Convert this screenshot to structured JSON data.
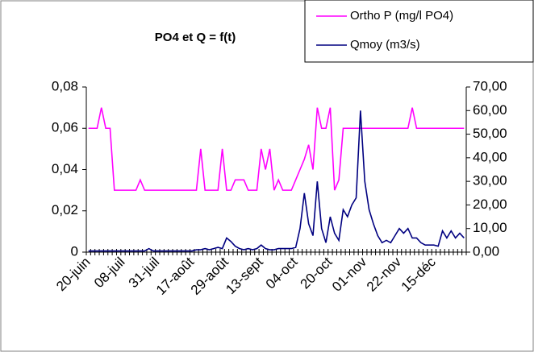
{
  "chart_data": {
    "type": "line",
    "title": "PO4 et Q = f(t)",
    "categories": [
      "20-juin",
      null,
      null,
      null,
      null,
      null,
      null,
      null,
      "08-juil",
      null,
      null,
      null,
      null,
      null,
      null,
      null,
      "31-juil",
      null,
      null,
      null,
      null,
      null,
      null,
      null,
      "17-août",
      null,
      null,
      null,
      null,
      null,
      null,
      null,
      "29-août",
      null,
      null,
      null,
      null,
      null,
      null,
      null,
      "13-sept",
      null,
      null,
      null,
      null,
      null,
      null,
      null,
      "04-oct",
      null,
      null,
      null,
      null,
      null,
      null,
      null,
      "20-oct",
      null,
      null,
      null,
      null,
      null,
      null,
      null,
      "01-nov",
      null,
      null,
      null,
      null,
      null,
      null,
      null,
      "22-nov",
      null,
      null,
      null,
      null,
      null,
      null,
      null,
      "15-déc",
      null,
      null,
      null,
      null,
      null,
      null,
      null
    ],
    "series": [
      {
        "name": "Ortho P (mg/l PO4)",
        "color": "#ff00ff",
        "axis": "y",
        "values": [
          0.06,
          0.06,
          0.06,
          0.07,
          0.06,
          0.06,
          0.03,
          0.03,
          0.03,
          0.03,
          0.03,
          0.03,
          0.035,
          0.03,
          0.03,
          0.03,
          0.03,
          0.03,
          0.03,
          0.03,
          0.03,
          0.03,
          0.03,
          0.03,
          0.03,
          0.03,
          0.05,
          0.03,
          0.03,
          0.03,
          0.03,
          0.05,
          0.03,
          0.03,
          0.035,
          0.035,
          0.035,
          0.03,
          0.03,
          0.03,
          0.05,
          0.04,
          0.05,
          0.03,
          0.035,
          0.03,
          0.03,
          0.03,
          0.035,
          0.04,
          0.045,
          0.052,
          0.04,
          0.07,
          0.06,
          0.06,
          0.07,
          0.03,
          0.035,
          0.06,
          0.06,
          0.06,
          0.06,
          0.06,
          0.06,
          0.06,
          0.06,
          0.06,
          0.06,
          0.06,
          0.06,
          0.06,
          0.06,
          0.06,
          0.06,
          0.07,
          0.06,
          0.06,
          0.06,
          0.06,
          0.06,
          0.06,
          0.06,
          0.06,
          0.06,
          0.06,
          0.06,
          0.06
        ]
      },
      {
        "name": "Qmoy (m3/s)",
        "color": "#000080",
        "axis": "y2",
        "values": [
          0.5,
          0.5,
          0.5,
          0.5,
          0.5,
          0.5,
          0.5,
          0.5,
          0.5,
          0.5,
          0.5,
          0.5,
          0.5,
          0.5,
          1.5,
          0.5,
          0.5,
          0.5,
          0.5,
          0.5,
          0.5,
          0.5,
          0.5,
          0.5,
          0.5,
          1,
          1,
          1.5,
          1,
          1.5,
          2,
          1.5,
          6,
          4.5,
          2.5,
          1.5,
          1,
          1.5,
          1,
          1.5,
          3,
          1.5,
          1,
          1,
          1.5,
          1.5,
          1.5,
          1.5,
          2,
          10,
          25,
          12,
          7,
          30,
          10,
          4,
          15,
          8,
          5,
          18,
          15,
          20,
          23,
          60,
          30,
          18,
          12,
          7,
          4,
          5,
          4,
          7,
          10,
          8,
          10,
          6,
          6,
          4,
          3,
          3,
          3,
          2.5,
          9,
          6,
          9,
          6,
          8,
          6
        ]
      }
    ],
    "ylim": [
      0,
      0.08
    ],
    "yticks": [
      0,
      {
        "value": 0.02,
        "label": "0,02"
      },
      {
        "value": 0.04,
        "label": "0,04"
      },
      {
        "value": 0.06,
        "label": "0,06"
      },
      {
        "value": 0.08,
        "label": "0,08"
      }
    ],
    "y2lim": [
      0,
      70
    ],
    "y2ticks": [
      {
        "value": 0,
        "label": "0,00"
      },
      {
        "value": 10,
        "label": "10,00"
      },
      {
        "value": 20,
        "label": "20,00"
      },
      {
        "value": 30,
        "label": "30,00"
      },
      {
        "value": 40,
        "label": "40,00"
      },
      {
        "value": 50,
        "label": "50,00"
      },
      {
        "value": 60,
        "label": "60,00"
      },
      {
        "value": 70,
        "label": "70,00"
      }
    ],
    "legend": "top-right"
  }
}
